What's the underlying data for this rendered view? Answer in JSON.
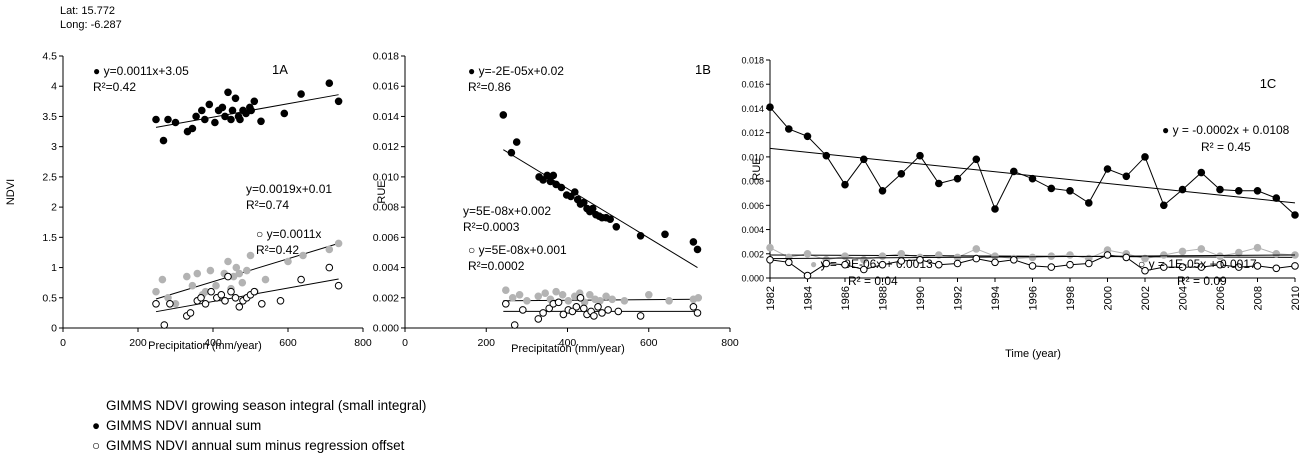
{
  "location": {
    "lat": "Lat: 15.772",
    "long": "Long: -6.287"
  },
  "legend": {
    "grey": {
      "symbol": "",
      "label": "GIMMS NDVI growing season integral (small integral)",
      "color": "#b3b3b3"
    },
    "black": {
      "symbol": "●",
      "label": "GIMMS NDVI annual sum",
      "color": "#000000"
    },
    "open": {
      "symbol": "○",
      "label": "GIMMS NDVI annual sum minus regression offset",
      "color": "#ffffff"
    }
  },
  "chart_data": [
    {
      "id": "1A",
      "type": "scatter",
      "panel_label": "1A",
      "xlabel": "Precipitation (mm/year)",
      "ylabel": "NDVI",
      "xlim": [
        0,
        800
      ],
      "ylim": [
        0,
        4.5
      ],
      "xticks": [
        "0",
        "200",
        "400",
        "600",
        "800"
      ],
      "yticks": [
        "0",
        "0.5",
        "1",
        "1.5",
        "2",
        "2.5",
        "3",
        "3.5",
        "4",
        "4.5"
      ],
      "series": [
        {
          "key": "black",
          "x": [
            248,
            268,
            280,
            300,
            332,
            345,
            355,
            370,
            378,
            390,
            405,
            415,
            425,
            432,
            440,
            448,
            452,
            460,
            468,
            472,
            480,
            488,
            498,
            502,
            510,
            528,
            590,
            635,
            710,
            735
          ],
          "y": [
            3.45,
            3.1,
            3.45,
            3.4,
            3.25,
            3.3,
            3.5,
            3.6,
            3.45,
            3.7,
            3.4,
            3.6,
            3.65,
            3.5,
            3.9,
            3.45,
            3.6,
            3.8,
            3.5,
            3.45,
            3.6,
            3.55,
            3.65,
            3.6,
            3.75,
            3.42,
            3.55,
            3.87,
            4.05,
            3.75
          ],
          "fit": [
            248,
            3.32,
            735,
            3.86
          ],
          "equation": "y=0.0011x+3.05",
          "r2": "R²=0.42"
        },
        {
          "key": "grey",
          "x": [
            248,
            265,
            280,
            300,
            330,
            345,
            358,
            372,
            380,
            393,
            408,
            420,
            430,
            440,
            448,
            455,
            462,
            470,
            478,
            490,
            500,
            512,
            540,
            600,
            640,
            710,
            735
          ],
          "y": [
            0.6,
            0.8,
            0.5,
            0.4,
            0.85,
            0.7,
            0.9,
            0.55,
            0.6,
            0.95,
            0.7,
            0.5,
            0.9,
            1.1,
            0.65,
            0.85,
            1.0,
            0.9,
            0.75,
            0.95,
            1.2,
            0.6,
            0.8,
            1.1,
            1.2,
            1.3,
            1.4
          ],
          "fit": [
            248,
            0.48,
            735,
            1.4
          ],
          "equation": "y=0.0019x+0.01",
          "r2": "R²=0.74"
        },
        {
          "key": "open",
          "x": [
            248,
            270,
            285,
            330,
            340,
            358,
            368,
            380,
            395,
            410,
            422,
            432,
            440,
            448,
            460,
            470,
            480,
            490,
            500,
            510,
            530,
            580,
            635,
            710,
            735
          ],
          "y": [
            0.4,
            0.05,
            0.4,
            0.2,
            0.25,
            0.45,
            0.5,
            0.4,
            0.6,
            0.5,
            0.55,
            0.45,
            0.85,
            0.6,
            0.5,
            0.35,
            0.45,
            0.5,
            0.55,
            0.6,
            0.4,
            0.45,
            0.8,
            1.0,
            0.7
          ],
          "fit": [
            248,
            0.27,
            735,
            0.81
          ],
          "equation": "y=0.0011x",
          "r2": "R²=0.42"
        }
      ]
    },
    {
      "id": "1B",
      "type": "scatter",
      "panel_label": "1B",
      "xlabel": "Precipitation (mm/year)",
      "ylabel": "RUE",
      "xlim": [
        0,
        800
      ],
      "ylim": [
        0,
        0.018
      ],
      "xticks": [
        "0",
        "200",
        "400",
        "600",
        "800"
      ],
      "yticks": [
        "0.000",
        "0.002",
        "0.004",
        "0.006",
        "0.008",
        "0.010",
        "0.012",
        "0.014",
        "0.016",
        "0.018"
      ],
      "series": [
        {
          "key": "black",
          "x": [
            242,
            262,
            275,
            330,
            340,
            350,
            358,
            365,
            372,
            385,
            398,
            408,
            418,
            425,
            432,
            440,
            448,
            455,
            462,
            470,
            478,
            485,
            495,
            505,
            520,
            580,
            640,
            710,
            720
          ],
          "y": [
            0.0141,
            0.0116,
            0.0123,
            0.01,
            0.0098,
            0.0101,
            0.0097,
            0.0101,
            0.0095,
            0.0093,
            0.0088,
            0.0087,
            0.009,
            0.0085,
            0.0082,
            0.0083,
            0.0079,
            0.0077,
            0.0079,
            0.0075,
            0.0074,
            0.0073,
            0.0073,
            0.0072,
            0.0067,
            0.0061,
            0.0062,
            0.0057,
            0.0052
          ],
          "fit": [
            242,
            0.0118,
            720,
            0.004
          ],
          "equation": "y=-2E-05x+0.02",
          "r2": "R²=0.86"
        },
        {
          "key": "grey",
          "x": [
            248,
            265,
            282,
            300,
            328,
            345,
            358,
            372,
            388,
            402,
            418,
            430,
            442,
            455,
            468,
            480,
            495,
            510,
            540,
            600,
            650,
            710,
            722
          ],
          "y": [
            0.0025,
            0.002,
            0.0022,
            0.0018,
            0.0021,
            0.0023,
            0.0019,
            0.0024,
            0.0022,
            0.0018,
            0.0021,
            0.0023,
            0.0017,
            0.0022,
            0.0019,
            0.0018,
            0.0021,
            0.0019,
            0.0018,
            0.0022,
            0.0018,
            0.0019,
            0.002
          ],
          "fit": [
            242,
            0.0018,
            722,
            0.0019
          ],
          "equation": "y=5E-08x+0.002",
          "r2": "R²=0.0003"
        },
        {
          "key": "open",
          "x": [
            248,
            270,
            290,
            328,
            340,
            355,
            365,
            378,
            390,
            402,
            412,
            422,
            432,
            440,
            448,
            458,
            465,
            475,
            485,
            500,
            525,
            580,
            710,
            720
          ],
          "y": [
            0.0016,
            0.0002,
            0.0012,
            0.0006,
            0.001,
            0.0013,
            0.0016,
            0.0017,
            0.0009,
            0.0012,
            0.0011,
            0.0014,
            0.002,
            0.0013,
            0.0009,
            0.0011,
            0.0008,
            0.0014,
            0.001,
            0.0012,
            0.0011,
            0.0008,
            0.0014,
            0.001
          ],
          "fit": [
            242,
            0.0011,
            722,
            0.0011
          ],
          "equation": "y=5E-08x+0.001",
          "r2": "R²=0.0002"
        }
      ]
    },
    {
      "id": "1C",
      "type": "line",
      "panel_label": "1C",
      "xlabel": "Time (year)",
      "ylabel": "RUE",
      "xlim": [
        1982,
        2010
      ],
      "ylim": [
        0,
        0.018
      ],
      "xticks": [
        "1982",
        "1984",
        "1986",
        "1988",
        "1990",
        "1992",
        "1994",
        "1996",
        "1998",
        "2000",
        "2002",
        "2004",
        "2006",
        "2008",
        "2010"
      ],
      "yticks": [
        "0.000",
        "0.002",
        "0.004",
        "0.006",
        "0.008",
        "0.010",
        "0.012",
        "0.014",
        "0.016",
        "0.018"
      ],
      "x": [
        1982,
        1983,
        1984,
        1985,
        1986,
        1987,
        1988,
        1989,
        1990,
        1991,
        1992,
        1993,
        1994,
        1995,
        1996,
        1997,
        1998,
        1999,
        2000,
        2001,
        2002,
        2003,
        2004,
        2005,
        2006,
        2007,
        2008,
        2009,
        2010
      ],
      "series": [
        {
          "key": "black",
          "values": [
            0.0141,
            0.0123,
            0.0117,
            0.0101,
            0.0077,
            0.0098,
            0.0072,
            0.0086,
            0.0101,
            0.0078,
            0.0082,
            0.0098,
            0.0057,
            0.0088,
            0.0082,
            0.0074,
            0.0072,
            0.0062,
            0.009,
            0.0084,
            0.01,
            0.006,
            0.0073,
            0.0087,
            0.0073,
            0.0072,
            0.0072,
            0.0066,
            0.0052
          ],
          "fit": [
            1982,
            0.0107,
            2010,
            0.0062
          ],
          "equation": "y = -0.0002x + 0.0108",
          "r2": "R² = 0.45"
        },
        {
          "key": "grey",
          "values": [
            0.0025,
            0.0017,
            0.002,
            0.0015,
            0.0018,
            0.0015,
            0.0018,
            0.002,
            0.0017,
            0.0019,
            0.0017,
            0.0024,
            0.0018,
            0.0016,
            0.0017,
            0.0018,
            0.0019,
            0.0016,
            0.0023,
            0.002,
            0.0016,
            0.0019,
            0.0022,
            0.0024,
            0.0018,
            0.0021,
            0.0025,
            0.002,
            0.0019
          ],
          "fit": [
            1982,
            0.0019,
            2010,
            0.0017
          ],
          "equation": "y = -9E-06x + 0.0013",
          "r2": "R² = 0.04"
        },
        {
          "key": "open",
          "values": [
            0.0015,
            0.0013,
            0.0002,
            0.0012,
            0.0011,
            0.0007,
            0.0011,
            0.0014,
            0.0015,
            0.0011,
            0.0012,
            0.0016,
            0.0013,
            0.0015,
            0.001,
            0.0009,
            0.0011,
            0.0012,
            0.0019,
            0.0017,
            0.0006,
            0.0009,
            0.0009,
            0.0009,
            0.0011,
            0.0009,
            0.001,
            0.0008,
            0.001
          ],
          "fit": [
            1982,
            0.0016,
            2010,
            0.0019
          ],
          "equation": "y = 1E-05x + 0.0017",
          "r2": "R² = 0.09"
        }
      ]
    }
  ]
}
